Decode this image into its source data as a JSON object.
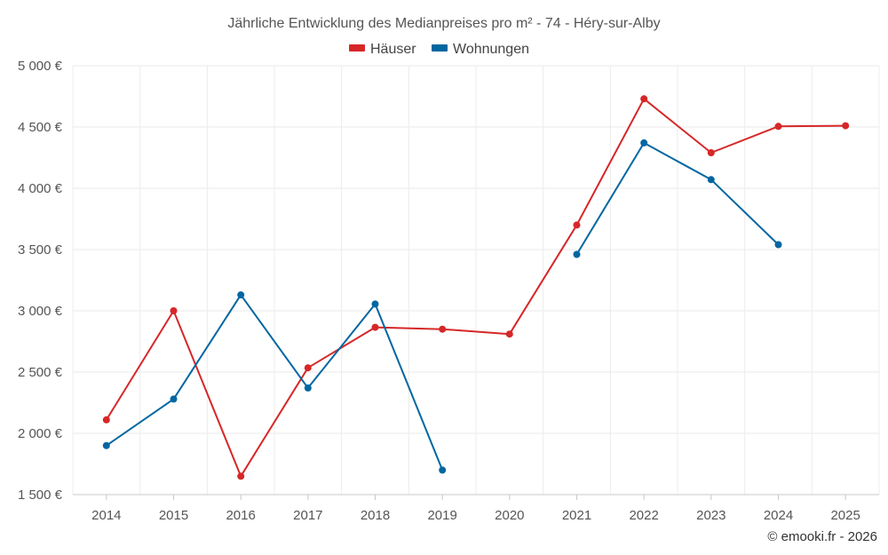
{
  "chart_data": {
    "type": "line",
    "title": "Jährliche Entwicklung des Medianpreises pro m² - 74 - Héry-sur-Alby",
    "categories": [
      "2014",
      "2015",
      "2016",
      "2017",
      "2018",
      "2019",
      "2020",
      "2021",
      "2022",
      "2023",
      "2024",
      "2025"
    ],
    "series": [
      {
        "name": "Häuser",
        "color": "#d62728",
        "values": [
          2110,
          3000,
          1650,
          2535,
          2865,
          2850,
          2810,
          3700,
          4730,
          4290,
          4505,
          4510
        ]
      },
      {
        "name": "Wohnungen",
        "color": "#0066a1",
        "values": [
          1900,
          2280,
          3130,
          2370,
          3055,
          1700,
          null,
          3460,
          4370,
          4070,
          3540,
          null
        ]
      }
    ],
    "ylim": [
      1500,
      5000
    ],
    "yticks": [
      1500,
      2000,
      2500,
      3000,
      3500,
      4000,
      4500,
      5000
    ],
    "ytick_labels": [
      "1 500 €",
      "2 000 €",
      "2 500 €",
      "3 000 €",
      "3 500 €",
      "4 000 €",
      "4 500 €",
      "5 000 €"
    ],
    "xlabel": "",
    "ylabel": "",
    "grid": true,
    "legend_position": "top-center"
  },
  "credit": "© emooki.fr - 2026"
}
